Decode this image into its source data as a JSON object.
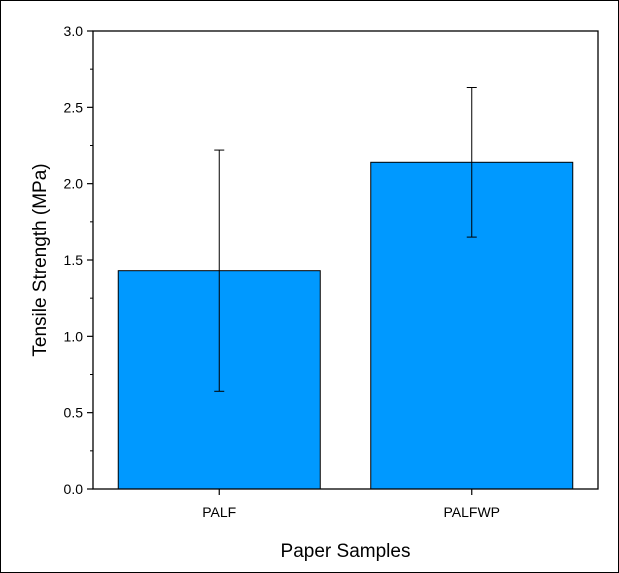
{
  "chart_data": {
    "type": "bar",
    "title": "",
    "xlabel": "Paper Samples",
    "ylabel": "Tensile Strength (MPa)",
    "categories": [
      "PALF",
      "PALFWP"
    ],
    "values": [
      1.43,
      2.14
    ],
    "error_low": [
      0.64,
      1.65
    ],
    "error_high": [
      2.22,
      2.63
    ],
    "ylim": [
      0.0,
      3.0
    ],
    "yticks": [
      "0.0",
      "0.5",
      "1.0",
      "1.5",
      "2.0",
      "2.5",
      "3.0"
    ],
    "yminor_step": 0.25,
    "grid": false,
    "legend": "none",
    "bar_color": "#0099ff",
    "edge_color": "#000000"
  }
}
